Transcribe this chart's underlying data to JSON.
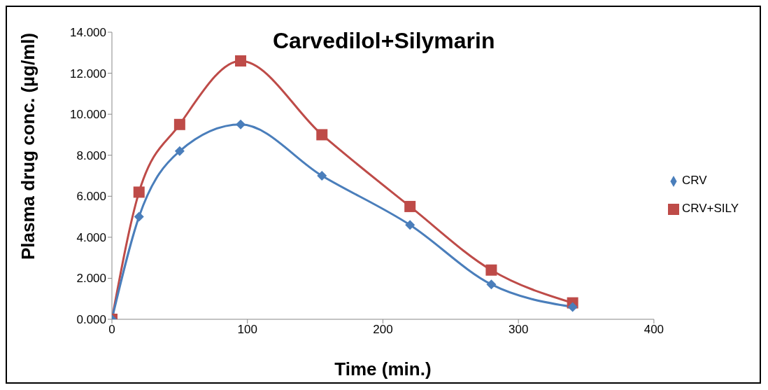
{
  "chart_data": {
    "type": "line",
    "title": "Carvedilol+Silymarin",
    "xlabel": "Time (min.)",
    "ylabel": "Plasma drug conc. (µg/ml)",
    "xlim": [
      0,
      400
    ],
    "xticks": [
      0,
      100,
      200,
      300,
      400
    ],
    "ylim": [
      0,
      14
    ],
    "yticks": [
      {
        "value": 0,
        "label": "0.000"
      },
      {
        "value": 2,
        "label": "2.000"
      },
      {
        "value": 4,
        "label": "4.000"
      },
      {
        "value": 6,
        "label": "6.000"
      },
      {
        "value": 8,
        "label": "8.000"
      },
      {
        "value": 10,
        "label": "10.000"
      },
      {
        "value": 12,
        "label": "12.000"
      },
      {
        "value": 14,
        "label": "14.000"
      }
    ],
    "grid": false,
    "legend": "right",
    "line_style": "solid",
    "series": [
      {
        "name": "CRV",
        "color": "#4a7ebb",
        "marker": "diamond",
        "x": [
          0,
          20,
          50,
          95,
          155,
          220,
          280,
          340
        ],
        "values": [
          0,
          5.0,
          8.2,
          9.5,
          7.0,
          4.6,
          1.7,
          0.6
        ]
      },
      {
        "name": "CRV+SILY",
        "color": "#be4b48",
        "marker": "square",
        "x": [
          0,
          20,
          50,
          95,
          155,
          220,
          280,
          340
        ],
        "values": [
          0,
          6.2,
          9.5,
          12.6,
          9.0,
          5.5,
          2.4,
          0.8
        ]
      }
    ]
  }
}
